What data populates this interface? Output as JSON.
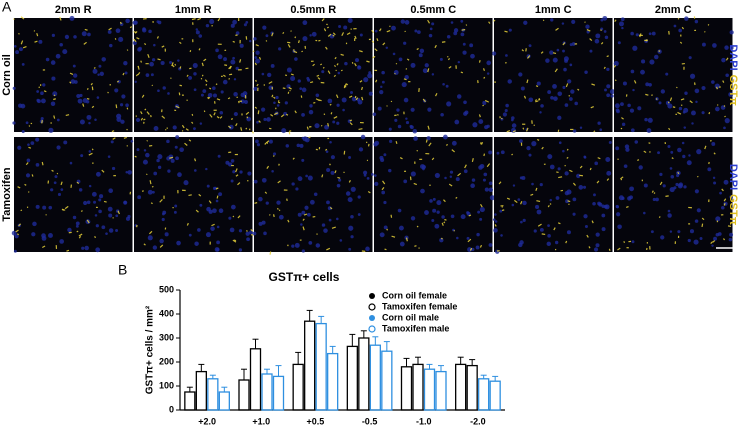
{
  "figure": {
    "panel_a": {
      "label": "A",
      "columns": [
        "2mm R",
        "1mm R",
        "0.5mm R",
        "0.5mm C",
        "1mm C",
        "2mm C"
      ],
      "rows": [
        "Corn oil",
        "Tamoxifen"
      ],
      "stains": [
        "DAPI",
        "GSTπ"
      ]
    }
  },
  "chart_data": {
    "type": "bar",
    "panel_label": "B",
    "title": "GSTπ+ cells",
    "y_label": "GSTπ+ cells / mm²",
    "categories": [
      "+2.0",
      "+1.0",
      "+0.5",
      "-0.5",
      "-1.0",
      "-2.0"
    ],
    "series": [
      {
        "name": "Corn oil female",
        "color": "#000000",
        "filled": true,
        "values": [
          75,
          125,
          190,
          265,
          180,
          190
        ],
        "errors": [
          20,
          45,
          50,
          50,
          35,
          30
        ]
      },
      {
        "name": "Tamoxifen female",
        "color": "#000000",
        "filled": false,
        "values": [
          160,
          255,
          370,
          300,
          190,
          185
        ],
        "errors": [
          30,
          40,
          45,
          30,
          30,
          25
        ]
      },
      {
        "name": "Corn oil male",
        "color": "#2e8fe0",
        "filled": true,
        "values": [
          130,
          150,
          360,
          270,
          170,
          130
        ],
        "errors": [
          15,
          20,
          30,
          35,
          20,
          15
        ]
      },
      {
        "name": "Tamoxifen male",
        "color": "#2e8fe0",
        "filled": false,
        "values": [
          75,
          140,
          235,
          245,
          160,
          120
        ],
        "errors": [
          20,
          45,
          30,
          40,
          25,
          20
        ]
      }
    ],
    "ylim": [
      0,
      500
    ],
    "yticks": [
      0,
      100,
      200,
      300,
      400,
      500
    ]
  }
}
